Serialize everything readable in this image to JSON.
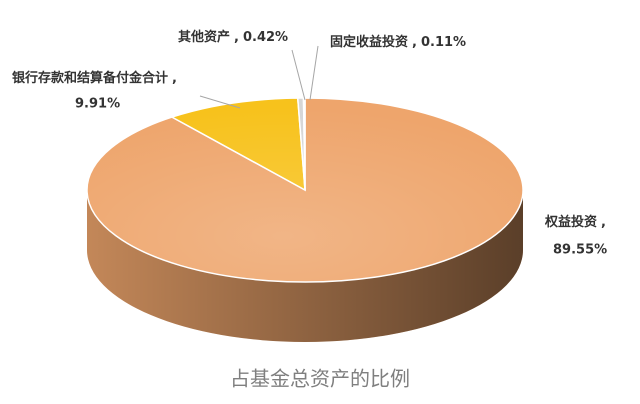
{
  "chart_data": {
    "type": "pie3d",
    "title": "占基金总资产的比例",
    "categories": [
      "权益投资",
      "银行存款和结算备付金合计",
      "其他资产",
      "固定收益投资"
    ],
    "values": [
      89.55,
      9.91,
      0.42,
      0.11
    ],
    "value_labels": [
      "89.55%",
      "9.91%",
      "0.42%",
      "0.11%"
    ],
    "label_separator": ",",
    "colors": [
      "#eea56c",
      "#f7c21c",
      "#d6d6d6",
      "#f2f2f2"
    ]
  }
}
